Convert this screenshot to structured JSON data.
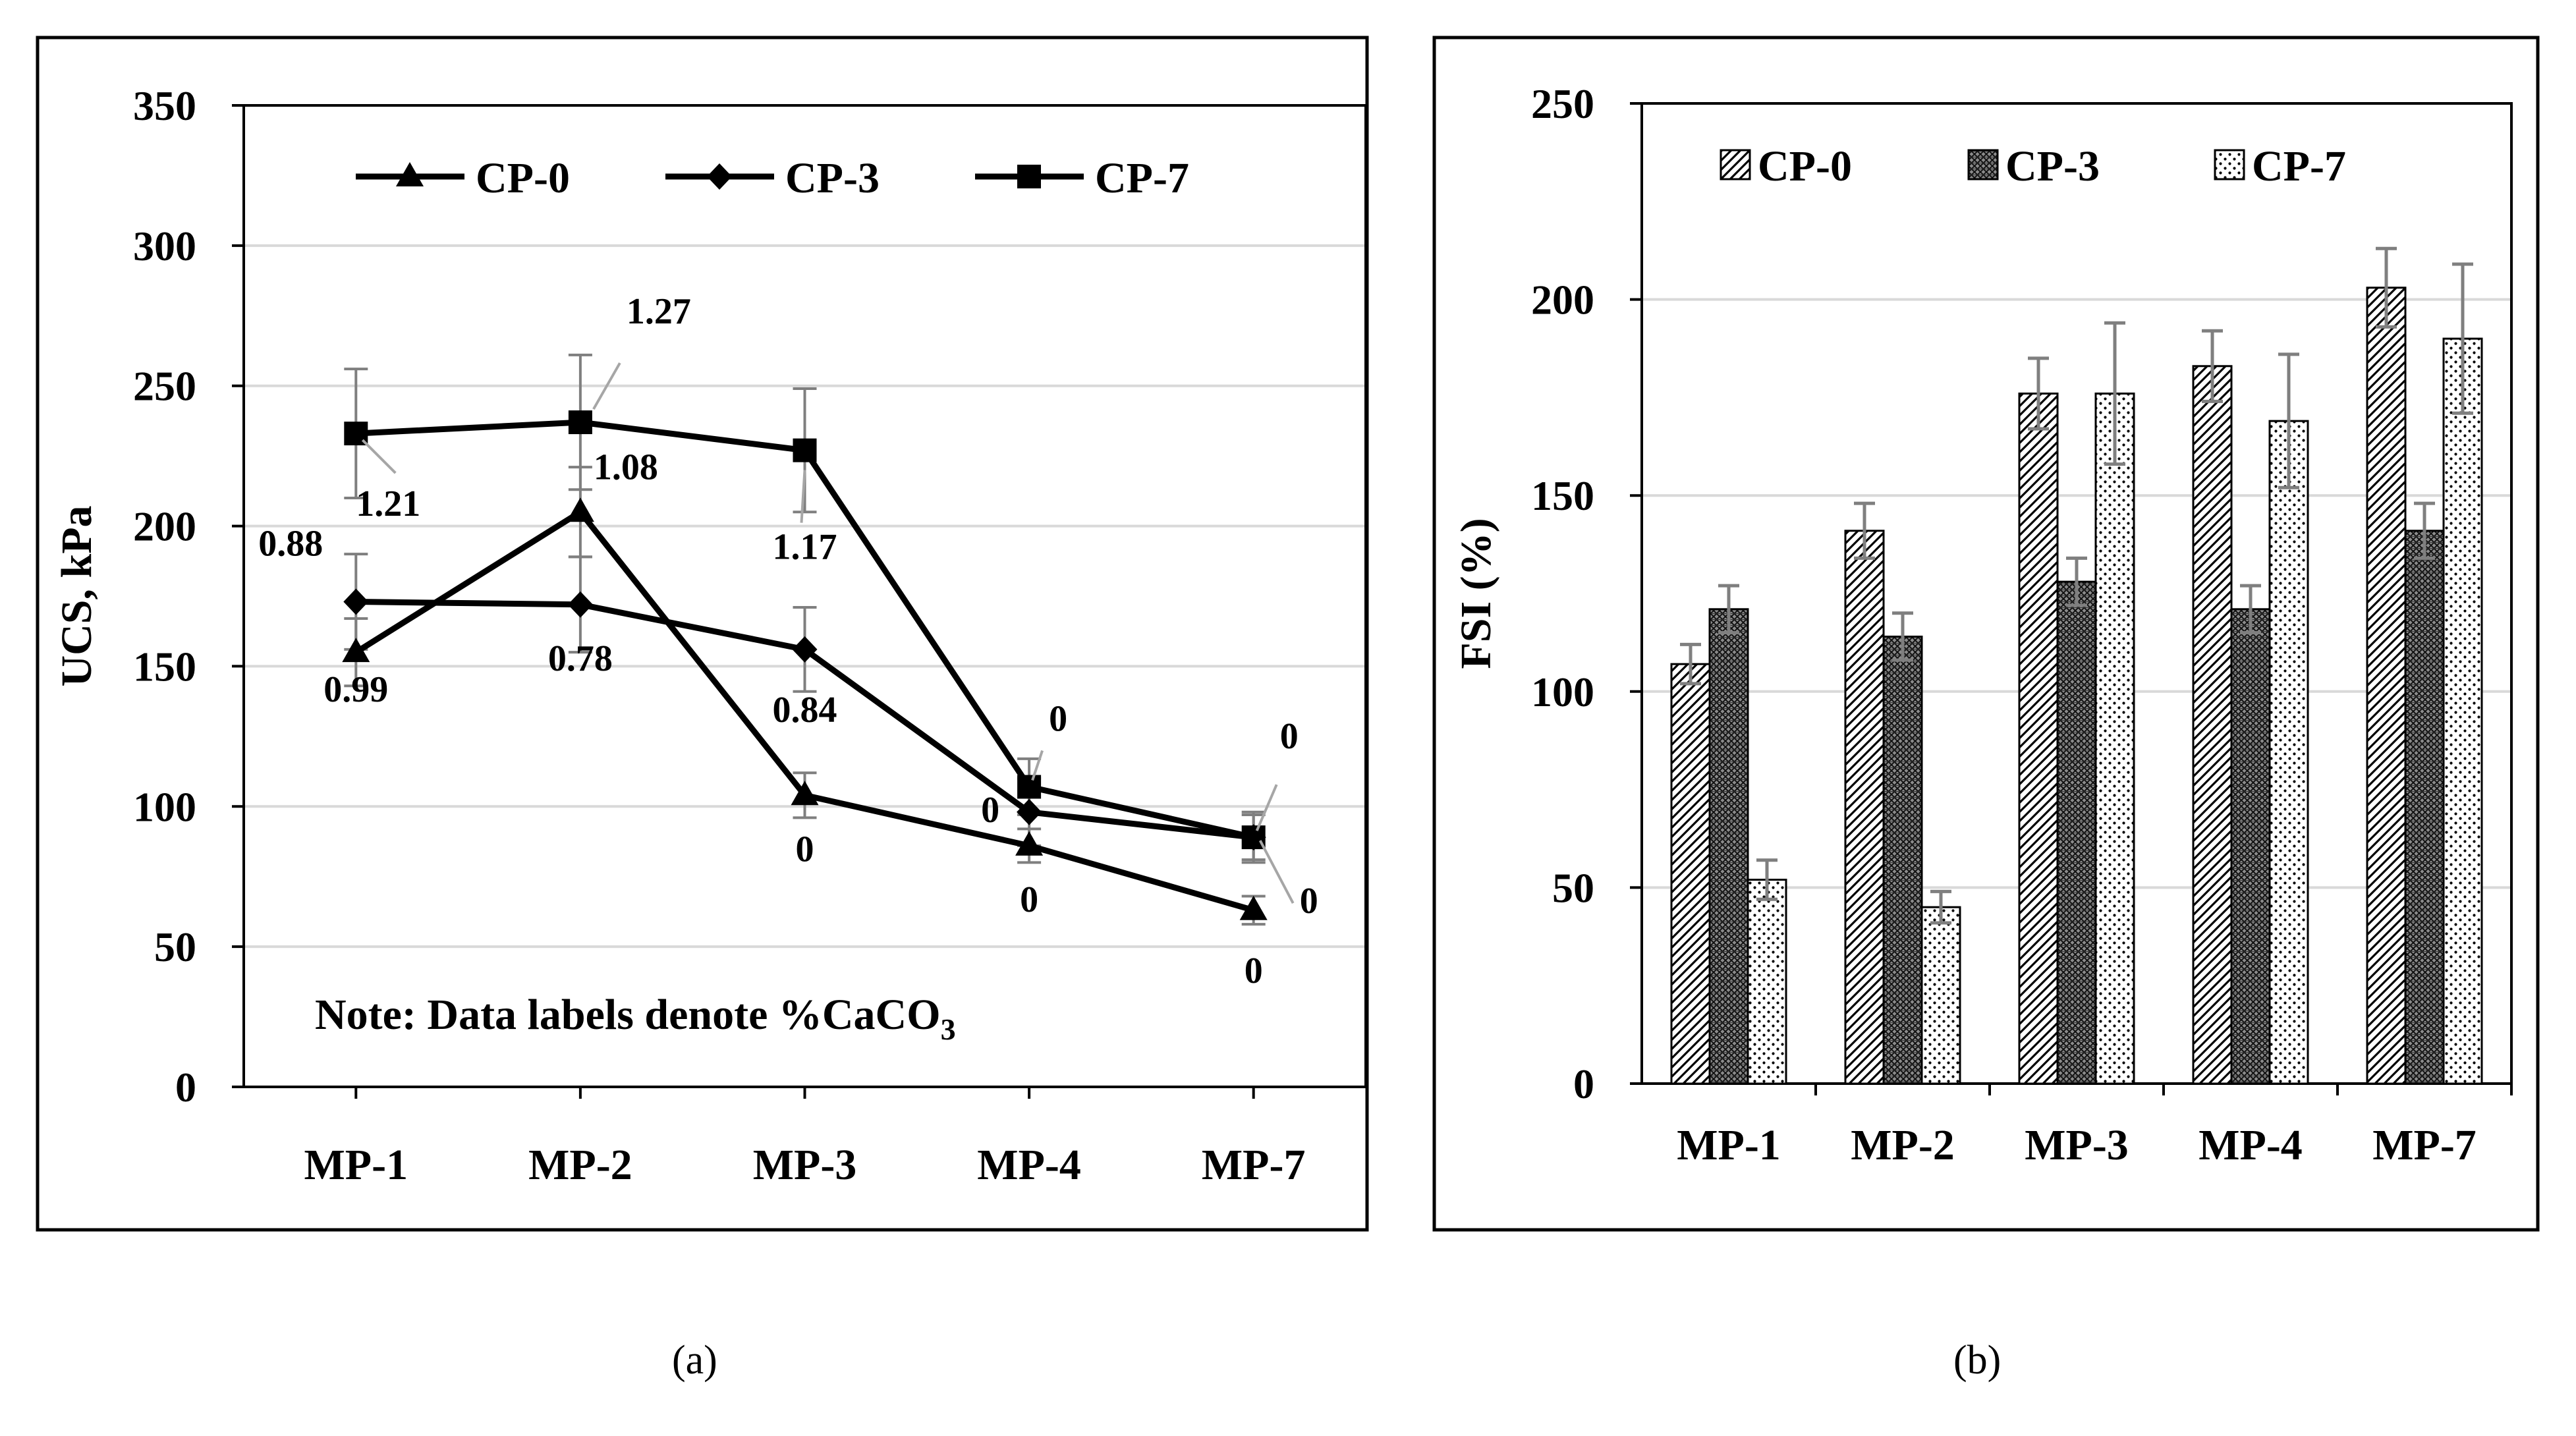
{
  "chart_data": [
    {
      "type": "line",
      "panel": "a",
      "ylabel": "UCS, kPa",
      "xlabel": "",
      "ylim": [
        0,
        350
      ],
      "yticks": [
        0,
        50,
        100,
        150,
        200,
        250,
        300,
        350
      ],
      "categories": [
        "MP-1",
        "MP-2",
        "MP-3",
        "MP-4",
        "MP-7"
      ],
      "grid": true,
      "legend_position": "top",
      "series": [
        {
          "name": "CP-0",
          "marker": "triangle",
          "values": [
            155,
            205,
            104,
            86,
            63
          ],
          "errors": [
            12,
            16,
            8,
            6,
            5
          ],
          "labels": [
            "0.99",
            "1.08",
            "0",
            "0",
            "0"
          ]
        },
        {
          "name": "CP-3",
          "marker": "diamond",
          "values": [
            173,
            172,
            156,
            98,
            89
          ],
          "errors": [
            17,
            17,
            15,
            12,
            8
          ],
          "labels": [
            "0.88",
            "0.78",
            "0.84",
            "0",
            "0"
          ]
        },
        {
          "name": "CP-7",
          "marker": "square",
          "values": [
            233,
            237,
            227,
            107,
            89
          ],
          "errors": [
            23,
            24,
            22,
            10,
            9
          ],
          "labels": [
            "1.21",
            "1.27",
            "1.17",
            "0",
            "0"
          ]
        }
      ],
      "note": {
        "prefix": "Note: Data labels denote %CaCO",
        "subscript": "3"
      }
    },
    {
      "type": "bar",
      "panel": "b",
      "ylabel": "FSI (%)",
      "xlabel": "",
      "ylim": [
        0,
        250
      ],
      "yticks": [
        0,
        50,
        100,
        150,
        200,
        250
      ],
      "categories": [
        "MP-1",
        "MP-2",
        "MP-3",
        "MP-4",
        "MP-7"
      ],
      "grid": true,
      "legend_position": "top",
      "series": [
        {
          "name": "CP-0",
          "pattern": "diagonal-hatch",
          "values": [
            107,
            141,
            176,
            183,
            203
          ],
          "errors": [
            5,
            7,
            9,
            9,
            10
          ]
        },
        {
          "name": "CP-3",
          "pattern": "dense-crosshatch",
          "values": [
            121,
            114,
            128,
            121,
            141
          ],
          "errors": [
            6,
            6,
            6,
            6,
            7
          ]
        },
        {
          "name": "CP-7",
          "pattern": "dots",
          "values": [
            52,
            45,
            176,
            169,
            190
          ],
          "errors": [
            5,
            4,
            18,
            17,
            19
          ]
        }
      ]
    }
  ],
  "captions": [
    "(a)",
    "(b)"
  ],
  "colors": {
    "line": "#000000",
    "grid": "#d9d9d9",
    "errorbar": "#7f7f7f",
    "label_leader": "#a6a6a6"
  }
}
